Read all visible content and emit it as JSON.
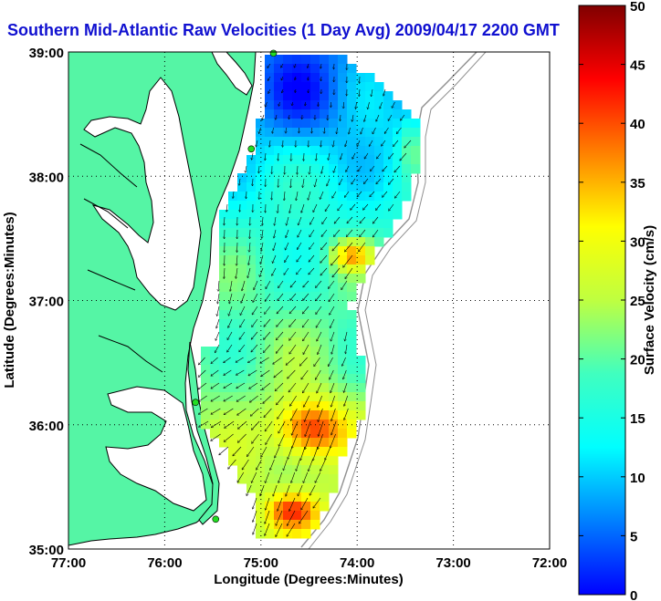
{
  "title": "Southern Mid-Atlantic Raw Velocities (1 Day Avg) 2009/04/17 2200 GMT",
  "map": {
    "x_axis_label": "Longitude (Degrees:Minutes)",
    "y_axis_label": "Latitude (Degrees:Minutes)",
    "lon_range": [
      -77,
      -72
    ],
    "lat_range": [
      35,
      39
    ],
    "lon_ticks": [
      {
        "value": -77,
        "label": "77:00"
      },
      {
        "value": -76,
        "label": "76:00"
      },
      {
        "value": -75,
        "label": "75:00"
      },
      {
        "value": -74,
        "label": "74:00"
      },
      {
        "value": -73,
        "label": "73:00"
      },
      {
        "value": -72,
        "label": "72:00"
      }
    ],
    "lat_ticks": [
      {
        "value": 39,
        "label": "39:00"
      },
      {
        "value": 38,
        "label": "38:00"
      },
      {
        "value": 37,
        "label": "37:00"
      },
      {
        "value": 36,
        "label": "36:00"
      },
      {
        "value": 35,
        "label": "35:00"
      }
    ],
    "gridlines": "dotted",
    "colors": {
      "land": "#55f5a5",
      "coast": "#000000",
      "isobath": "#909090",
      "station": "#22dd22"
    },
    "stations": [
      {
        "lon": -74.87,
        "lat": 38.99
      },
      {
        "lon": -75.1,
        "lat": 38.22
      },
      {
        "lon": -75.68,
        "lat": 36.18
      },
      {
        "lon": -75.47,
        "lat": 35.24
      }
    ]
  },
  "colorbar": {
    "label": "Surface Velocity (cm/s)",
    "min": 0,
    "max": 50,
    "ticks": [
      0,
      5,
      10,
      15,
      20,
      25,
      30,
      35,
      40,
      45,
      50
    ]
  }
}
